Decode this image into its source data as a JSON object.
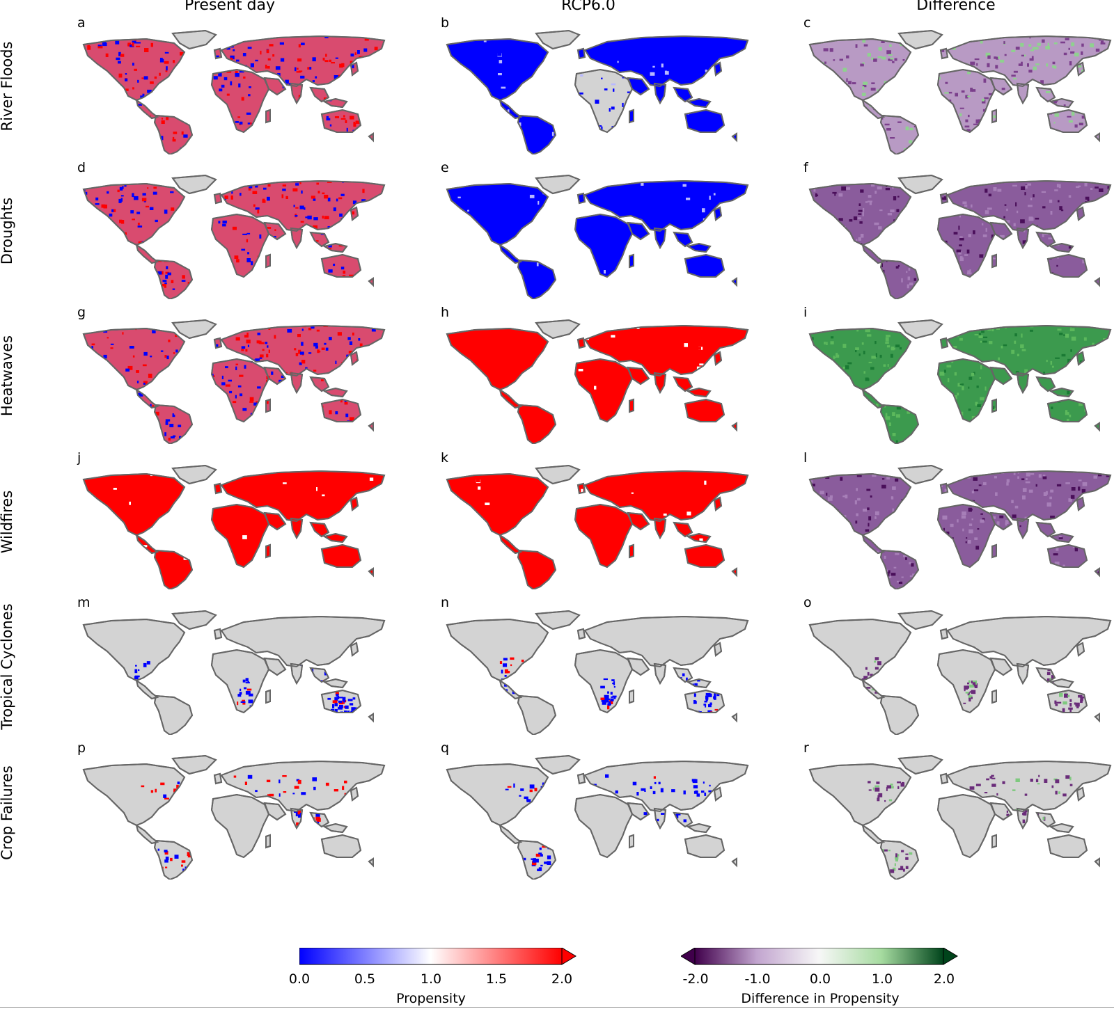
{
  "columns": [
    {
      "title": "Present day",
      "kind": "propensity"
    },
    {
      "title": "RCP6.0",
      "kind": "propensity"
    },
    {
      "title": "Difference",
      "kind": "difference"
    }
  ],
  "rows": [
    {
      "label": "River Floods",
      "letters": [
        "a",
        "b",
        "c"
      ],
      "fills": [
        "mix-red-blue",
        "blue",
        "purple-green-mix"
      ]
    },
    {
      "label": "Droughts",
      "letters": [
        "d",
        "e",
        "f"
      ],
      "fills": [
        "mix-red-blue",
        "blue",
        "purple"
      ]
    },
    {
      "label": "Heatwaves",
      "letters": [
        "g",
        "h",
        "i"
      ],
      "fills": [
        "mix-red-blue",
        "red",
        "green"
      ]
    },
    {
      "label": "Wildfires",
      "letters": [
        "j",
        "k",
        "l"
      ],
      "fills": [
        "red",
        "red",
        "purple"
      ]
    },
    {
      "label": "Tropical Cyclones",
      "letters": [
        "m",
        "n",
        "o"
      ],
      "fills": [
        "gray-coastal-blue",
        "gray-coastal-blue",
        "gray-coastal-purple"
      ]
    },
    {
      "label": "Crop Failures",
      "letters": [
        "p",
        "q",
        "r"
      ],
      "fills": [
        "gray-mix",
        "gray-blue",
        "gray-purple"
      ]
    }
  ],
  "colorbars": [
    {
      "title": "Propensity",
      "ticks": [
        "0.0",
        "0.5",
        "1.0",
        "1.5",
        "2.0"
      ],
      "colors": [
        "#0000ff",
        "#ffffff",
        "#ff0000"
      ],
      "extend": "max"
    },
    {
      "title": "Difference in Propensity",
      "ticks": [
        "-2.0",
        "-1.0",
        "0.0",
        "1.0",
        "2.0"
      ],
      "colors": [
        "#40004b",
        "#c2a5cf",
        "#f7f7f7",
        "#a6dba0",
        "#00441b"
      ],
      "extend": "both"
    }
  ],
  "colors": {
    "land_no_data": "#d3d3d3",
    "coastline": "#666666",
    "propensity_low": "#0000ff",
    "propensity_mid": "#ffffff",
    "propensity_high": "#ff0000",
    "diff_negative": "#40004b",
    "diff_positive": "#00441b"
  }
}
